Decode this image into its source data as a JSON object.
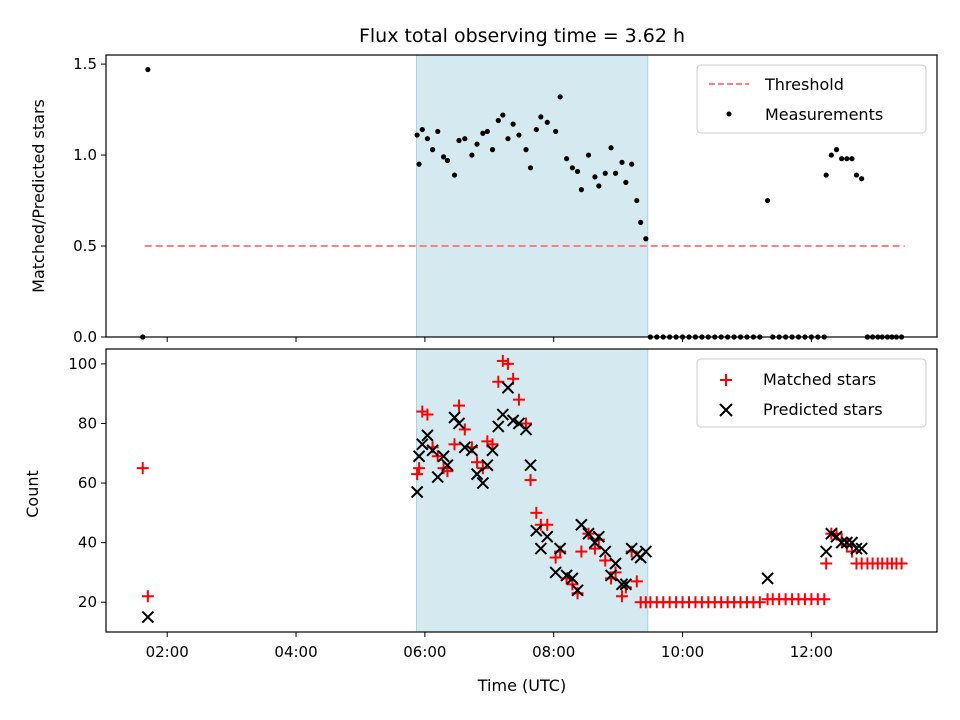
{
  "figure": {
    "title": "Flux total observing time = 3.62 h"
  },
  "colors": {
    "shade": "#d4eaf0",
    "shade_edge": "#a8d5e2",
    "threshold": "#ff7f7f",
    "measurement": "#000000",
    "matched": "#ff0000",
    "predicted": "#000000"
  },
  "chart_data": [
    {
      "type": "scatter",
      "panel": "top",
      "title": "Flux total observing time = 3.62 h",
      "xlabel": "",
      "ylabel": "Matched/Predicted stars",
      "xlim": [
        1.05,
        13.95
      ],
      "ylim": [
        0,
        1.55
      ],
      "yticks": [
        0,
        0.5,
        1.0,
        1.5
      ],
      "ytick_labels": [
        "0.0",
        "0.5",
        "1.0",
        "1.5"
      ],
      "grid": false,
      "legend_position": "top-right",
      "shaded_interval": [
        5.87,
        9.46
      ],
      "threshold": {
        "name": "Threshold",
        "y": 0.5,
        "x": [
          1.65,
          13.45
        ]
      },
      "series": [
        {
          "name": "Measurements",
          "x": [
            1.62,
            1.7,
            5.88,
            5.91,
            5.96,
            6.04,
            6.12,
            6.2,
            6.29,
            6.35,
            6.46,
            6.53,
            6.62,
            6.73,
            6.81,
            6.9,
            6.97,
            7.05,
            7.14,
            7.21,
            7.29,
            7.37,
            7.46,
            7.57,
            7.64,
            7.73,
            7.8,
            7.9,
            8.03,
            8.1,
            8.2,
            8.29,
            8.37,
            8.43,
            8.54,
            8.64,
            8.7,
            8.8,
            8.89,
            8.96,
            9.06,
            9.12,
            9.21,
            9.29,
            9.35,
            9.43,
            9.5,
            9.6,
            9.7,
            9.8,
            9.9,
            10.0,
            10.1,
            10.2,
            10.3,
            10.4,
            10.5,
            10.6,
            10.7,
            10.8,
            10.9,
            11.0,
            11.1,
            11.2,
            11.32,
            11.4,
            11.5,
            11.6,
            11.7,
            11.8,
            11.9,
            12.0,
            12.1,
            12.2,
            12.23,
            12.31,
            12.39,
            12.47,
            12.55,
            12.63,
            12.7,
            12.78,
            12.87,
            12.95,
            13.03,
            13.1,
            13.18,
            13.25,
            13.32,
            13.4
          ],
          "y": [
            0.0,
            1.47,
            1.11,
            0.95,
            1.14,
            1.09,
            1.03,
            1.13,
            0.99,
            0.97,
            0.89,
            1.08,
            1.09,
            1.0,
            1.06,
            1.12,
            1.13,
            1.03,
            1.19,
            1.22,
            1.09,
            1.17,
            1.11,
            1.03,
            0.93,
            1.14,
            1.21,
            1.18,
            1.13,
            1.32,
            0.98,
            0.93,
            0.91,
            0.81,
            1.0,
            0.88,
            0.83,
            0.9,
            1.04,
            0.9,
            0.96,
            0.85,
            0.95,
            0.75,
            0.63,
            0.54,
            0.0,
            0.0,
            0.0,
            0.0,
            0.0,
            0.0,
            0.0,
            0.0,
            0.0,
            0.0,
            0.0,
            0.0,
            0.0,
            0.0,
            0.0,
            0.0,
            0.0,
            0.0,
            0.75,
            0.0,
            0.0,
            0.0,
            0.0,
            0.0,
            0.0,
            0.0,
            0.0,
            0.0,
            0.89,
            1.0,
            1.03,
            0.98,
            0.98,
            0.98,
            0.89,
            0.87,
            0.0,
            0.0,
            0.0,
            0.0,
            0.0,
            0.0,
            0.0,
            0.0
          ]
        }
      ]
    },
    {
      "type": "scatter",
      "panel": "bottom",
      "xlabel": "Time (UTC)",
      "ylabel": "Count",
      "xlim": [
        1.05,
        13.95
      ],
      "ylim": [
        10,
        105
      ],
      "yticks": [
        20,
        40,
        60,
        80,
        100
      ],
      "ytick_labels": [
        "20",
        "40",
        "60",
        "80",
        "100"
      ],
      "xticks": [
        2,
        4,
        6,
        8,
        10,
        12
      ],
      "xtick_labels": [
        "02:00",
        "04:00",
        "06:00",
        "08:00",
        "10:00",
        "12:00"
      ],
      "grid": false,
      "legend_position": "top-right",
      "shaded_interval": [
        5.87,
        9.46
      ],
      "series": [
        {
          "name": "Matched stars",
          "marker": "plus",
          "x": [
            1.62,
            1.7,
            5.88,
            5.91,
            5.96,
            6.04,
            6.12,
            6.2,
            6.29,
            6.35,
            6.46,
            6.53,
            6.62,
            6.73,
            6.81,
            6.9,
            6.97,
            7.05,
            7.14,
            7.21,
            7.29,
            7.37,
            7.46,
            7.57,
            7.64,
            7.73,
            7.8,
            7.9,
            8.03,
            8.1,
            8.2,
            8.29,
            8.37,
            8.43,
            8.54,
            8.64,
            8.7,
            8.8,
            8.89,
            8.96,
            9.06,
            9.12,
            9.21,
            9.29,
            9.35,
            9.43,
            9.5,
            9.6,
            9.7,
            9.8,
            9.9,
            10.0,
            10.1,
            10.2,
            10.3,
            10.4,
            10.5,
            10.6,
            10.7,
            10.8,
            10.9,
            11.0,
            11.1,
            11.2,
            11.32,
            11.4,
            11.5,
            11.6,
            11.7,
            11.8,
            11.9,
            12.0,
            12.1,
            12.2,
            12.23,
            12.31,
            12.39,
            12.47,
            12.55,
            12.63,
            12.7,
            12.78,
            12.87,
            12.95,
            13.03,
            13.1,
            13.18,
            13.25,
            13.32,
            13.4
          ],
          "y": [
            65,
            22,
            63,
            65,
            84,
            83,
            72,
            69,
            65,
            64,
            73,
            86,
            78,
            72,
            67,
            65,
            74,
            73,
            94,
            101,
            100,
            95,
            88,
            80,
            61,
            50,
            46,
            46,
            35,
            37,
            28,
            26,
            23,
            37,
            43,
            38,
            41,
            34,
            28,
            30,
            22,
            25,
            37,
            27,
            20,
            20,
            20,
            20,
            20,
            20,
            20,
            20,
            20,
            20,
            20,
            20,
            20,
            20,
            20,
            20,
            20,
            20,
            20,
            20,
            21,
            21,
            21,
            21,
            21,
            21,
            21,
            21,
            21,
            21,
            33,
            43,
            43,
            41,
            39,
            37,
            33,
            33,
            33,
            33,
            33,
            33,
            33,
            33,
            33,
            33
          ]
        },
        {
          "name": "Predicted stars",
          "marker": "x",
          "x": [
            1.7,
            5.88,
            5.91,
            5.96,
            6.04,
            6.12,
            6.2,
            6.29,
            6.35,
            6.46,
            6.53,
            6.62,
            6.73,
            6.81,
            6.9,
            6.97,
            7.05,
            7.14,
            7.21,
            7.29,
            7.37,
            7.46,
            7.57,
            7.64,
            7.73,
            7.8,
            7.9,
            8.03,
            8.1,
            8.2,
            8.29,
            8.37,
            8.43,
            8.54,
            8.64,
            8.7,
            8.8,
            8.89,
            8.96,
            9.06,
            9.12,
            9.21,
            9.29,
            9.35,
            9.43,
            11.32,
            12.23,
            12.31,
            12.39,
            12.47,
            12.55,
            12.63,
            12.7,
            12.78
          ],
          "y": [
            15,
            57,
            69,
            73,
            76,
            71,
            62,
            69,
            66,
            82,
            80,
            72,
            71,
            63,
            60,
            66,
            71,
            79,
            83,
            92,
            81,
            80,
            78,
            66,
            44,
            38,
            42,
            30,
            38,
            29,
            28,
            24,
            46,
            43,
            40,
            42,
            37,
            29,
            33,
            26,
            26,
            38,
            36,
            35,
            37,
            28,
            37,
            43,
            42,
            40,
            40,
            40,
            38,
            38
          ]
        }
      ]
    }
  ]
}
